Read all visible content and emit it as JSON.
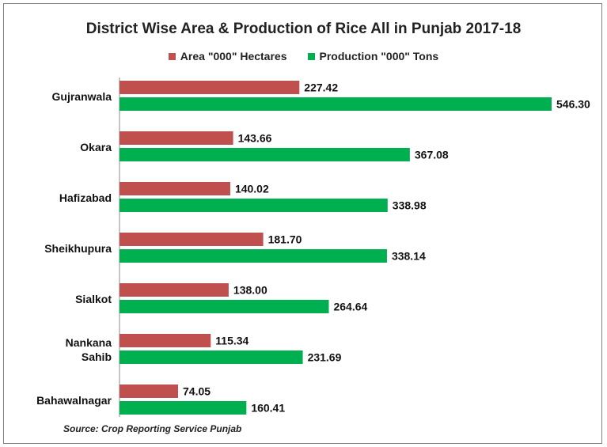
{
  "chart_data": {
    "type": "bar",
    "orientation": "horizontal",
    "title": "District Wise Area & Production of Rice All in Punjab 2017-18",
    "categories": [
      [
        "Gujranwala"
      ],
      [
        "Okara"
      ],
      [
        "Hafizabad"
      ],
      [
        "Sheikhupura"
      ],
      [
        "Sialkot"
      ],
      [
        "Nankana",
        "Sahib"
      ],
      [
        "Bahawalnagar"
      ]
    ],
    "series": [
      {
        "name": "Area \"000\" Hectares",
        "color": "#c0504d",
        "values": [
          227.42,
          143.66,
          140.02,
          181.7,
          138.0,
          115.34,
          74.05
        ],
        "labels": [
          "227.42",
          "143.66",
          "140.02",
          "181.70",
          "138.00",
          "115.34",
          "74.05"
        ]
      },
      {
        "name": "Production \"000\" Tons",
        "color": "#00b050",
        "values": [
          546.3,
          367.08,
          338.98,
          338.14,
          264.64,
          231.69,
          160.41
        ],
        "labels": [
          "546.30",
          "367.08",
          "338.98",
          "338.14",
          "264.64",
          "231.69",
          "160.41"
        ]
      }
    ],
    "xlim": [
      0,
      546.3
    ],
    "grid": false,
    "legend": "top"
  },
  "source": "Source: Crop Reporting Service Punjab"
}
